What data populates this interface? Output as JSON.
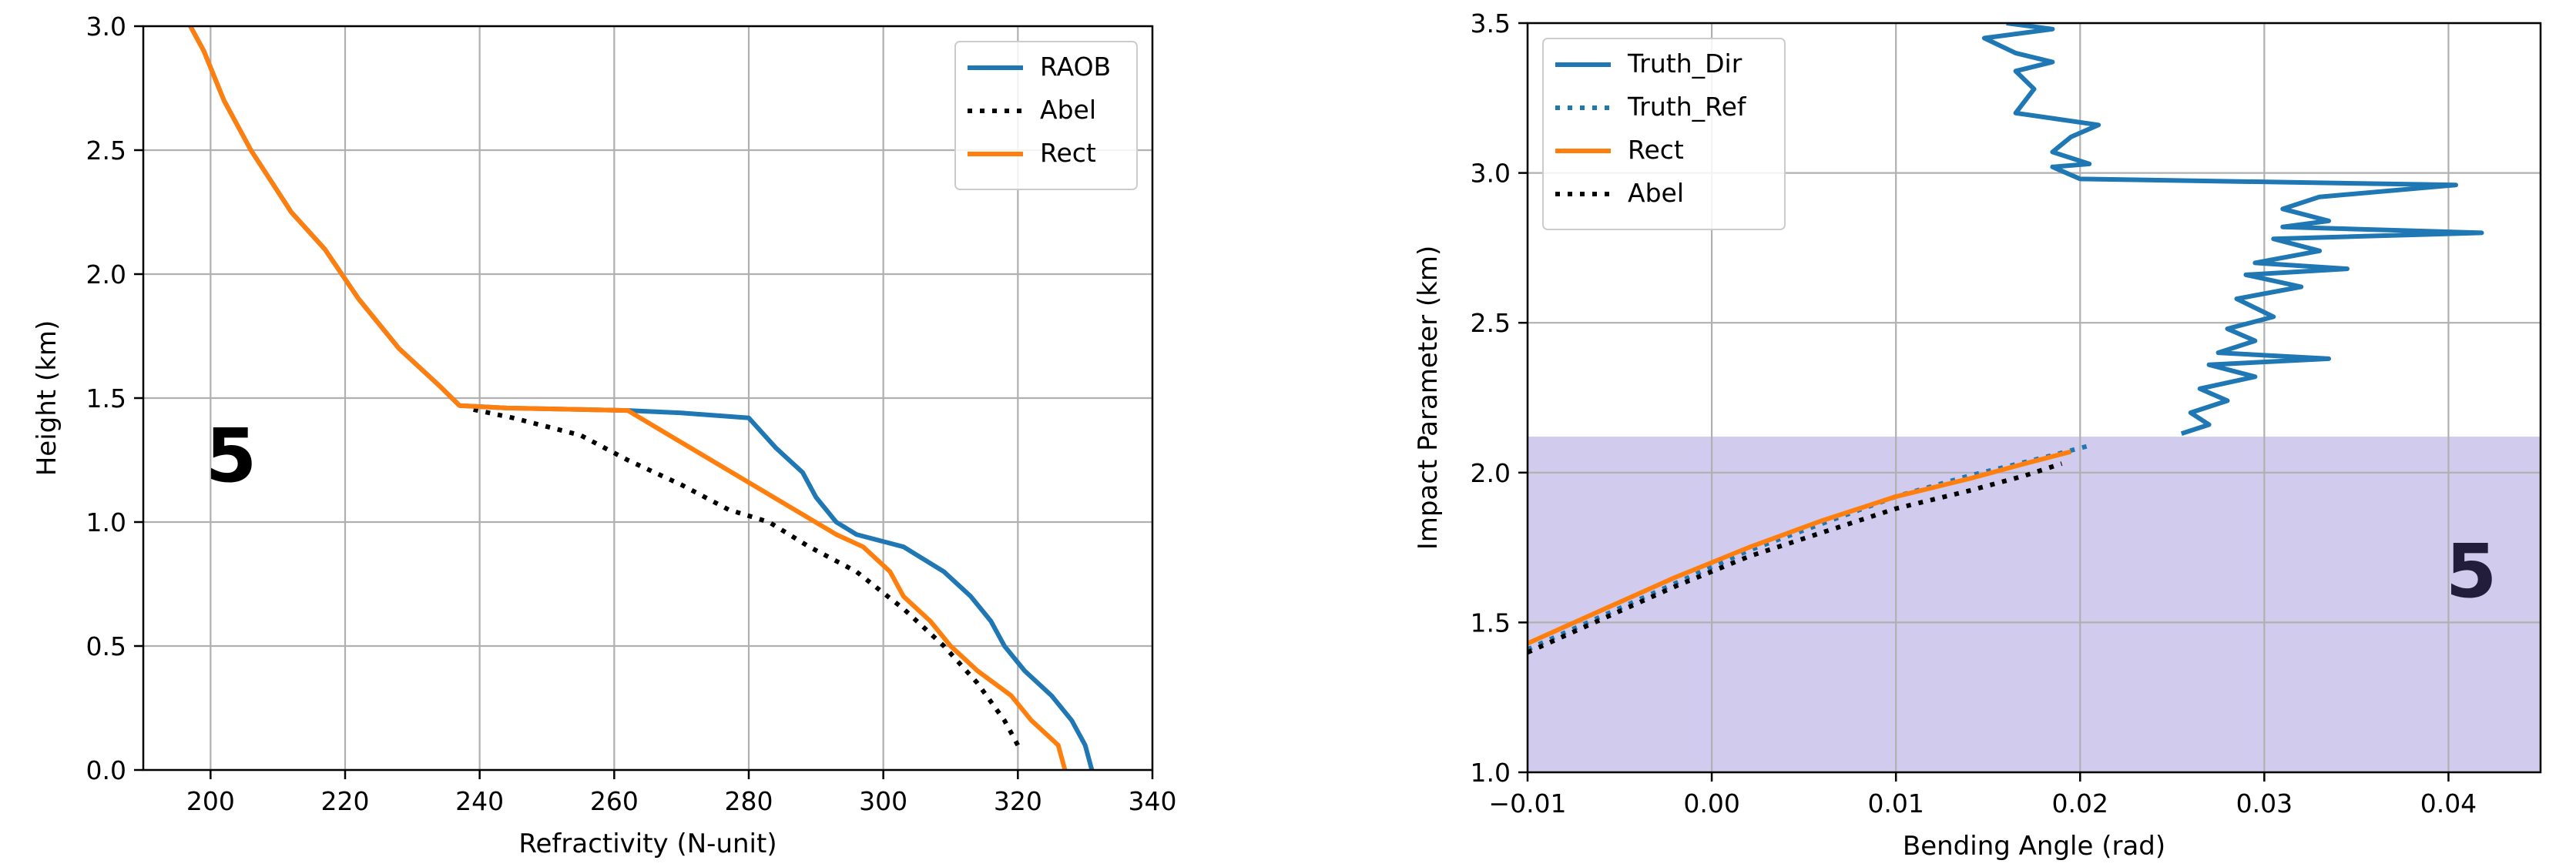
{
  "chart_data": [
    {
      "type": "line",
      "xlabel": "Refractivity (N-unit)",
      "ylabel": "Height (km)",
      "xlim": [
        190,
        340
      ],
      "ylim": [
        0,
        3.0
      ],
      "xticks": [
        200,
        220,
        240,
        260,
        280,
        300,
        320,
        340
      ],
      "yticks": [
        0.0,
        0.5,
        1.0,
        1.5,
        2.0,
        2.5,
        3.0
      ],
      "xtick_labels": [
        "200",
        "220",
        "240",
        "260",
        "280",
        "300",
        "320",
        "340"
      ],
      "ytick_labels": [
        "0.0",
        "0.5",
        "1.0",
        "1.5",
        "2.0",
        "2.5",
        "3.0"
      ],
      "grid": true,
      "legend_position": "top-right",
      "panel_label": "5",
      "series": [
        {
          "name": "RAOB",
          "color": "#1f77b4",
          "style": "solid",
          "points": [
            [
              331,
              0.0
            ],
            [
              330,
              0.1
            ],
            [
              328,
              0.2
            ],
            [
              325,
              0.3
            ],
            [
              321,
              0.4
            ],
            [
              318,
              0.5
            ],
            [
              316,
              0.6
            ],
            [
              313,
              0.7
            ],
            [
              309,
              0.8
            ],
            [
              303,
              0.9
            ],
            [
              296,
              0.95
            ],
            [
              293,
              1.0
            ],
            [
              290,
              1.1
            ],
            [
              288,
              1.2
            ],
            [
              284,
              1.3
            ],
            [
              280,
              1.42
            ],
            [
              270,
              1.44
            ],
            [
              262,
              1.45
            ],
            [
              244,
              1.46
            ],
            [
              237,
              1.47
            ],
            [
              234,
              1.55
            ],
            [
              228,
              1.7
            ],
            [
              222,
              1.9
            ],
            [
              217,
              2.1
            ],
            [
              212,
              2.25
            ],
            [
              206,
              2.5
            ],
            [
              202,
              2.7
            ],
            [
              199,
              2.9
            ],
            [
              197,
              3.0
            ]
          ]
        },
        {
          "name": "Abel",
          "color": "#000000",
          "style": "dotted",
          "points": [
            [
              320,
              0.1
            ],
            [
              318,
              0.2
            ],
            [
              314,
              0.35
            ],
            [
              309,
              0.5
            ],
            [
              303,
              0.65
            ],
            [
              296,
              0.8
            ],
            [
              289,
              0.9
            ],
            [
              283,
              1.0
            ],
            [
              277,
              1.05
            ],
            [
              270,
              1.15
            ],
            [
              262,
              1.25
            ],
            [
              255,
              1.35
            ],
            [
              245,
              1.42
            ],
            [
              238,
              1.46
            ]
          ]
        },
        {
          "name": "Rect",
          "color": "#ff7f0e",
          "style": "solid",
          "points": [
            [
              327,
              0.0
            ],
            [
              326,
              0.1
            ],
            [
              322,
              0.2
            ],
            [
              319,
              0.3
            ],
            [
              314,
              0.4
            ],
            [
              310,
              0.5
            ],
            [
              307,
              0.6
            ],
            [
              303,
              0.7
            ],
            [
              301,
              0.8
            ],
            [
              297,
              0.9
            ],
            [
              293,
              0.95
            ],
            [
              262,
              1.45
            ],
            [
              244,
              1.46
            ],
            [
              237,
              1.47
            ],
            [
              234,
              1.55
            ],
            [
              228,
              1.7
            ],
            [
              222,
              1.9
            ],
            [
              217,
              2.1
            ],
            [
              212,
              2.25
            ],
            [
              206,
              2.5
            ],
            [
              202,
              2.7
            ],
            [
              199,
              2.9
            ],
            [
              197,
              3.0
            ]
          ]
        }
      ]
    },
    {
      "type": "line",
      "xlabel": "Bending Angle (rad)",
      "ylabel": "Impact Parameter (km)",
      "xlim": [
        -0.01,
        0.045
      ],
      "ylim": [
        1.0,
        3.5
      ],
      "xticks": [
        -0.01,
        0.0,
        0.01,
        0.02,
        0.03,
        0.04
      ],
      "yticks": [
        1.0,
        1.5,
        2.0,
        2.5,
        3.0,
        3.5
      ],
      "xtick_labels": [
        "−0.01",
        "0.00",
        "0.01",
        "0.02",
        "0.03",
        "0.04"
      ],
      "ytick_labels": [
        "1.0",
        "1.5",
        "2.0",
        "2.5",
        "3.0",
        "3.5"
      ],
      "grid": true,
      "legend_position": "top-left",
      "panel_label": "5",
      "shaded_region": {
        "ymin": 1.0,
        "ymax": 2.12,
        "color": "#d1cbee"
      },
      "series": [
        {
          "name": "Truth_Dir",
          "color": "#1f77b4",
          "style": "solid",
          "points": [
            [
              0.0255,
              2.13
            ],
            [
              0.027,
              2.16
            ],
            [
              0.026,
              2.2
            ],
            [
              0.028,
              2.24
            ],
            [
              0.0265,
              2.28
            ],
            [
              0.0295,
              2.32
            ],
            [
              0.027,
              2.36
            ],
            [
              0.0335,
              2.38
            ],
            [
              0.0275,
              2.4
            ],
            [
              0.0295,
              2.44
            ],
            [
              0.028,
              2.48
            ],
            [
              0.0305,
              2.52
            ],
            [
              0.0285,
              2.58
            ],
            [
              0.032,
              2.62
            ],
            [
              0.029,
              2.66
            ],
            [
              0.0345,
              2.68
            ],
            [
              0.0295,
              2.7
            ],
            [
              0.033,
              2.74
            ],
            [
              0.0305,
              2.78
            ],
            [
              0.0418,
              2.8
            ],
            [
              0.031,
              2.82
            ],
            [
              0.0335,
              2.84
            ],
            [
              0.031,
              2.88
            ],
            [
              0.033,
              2.92
            ],
            [
              0.0404,
              2.96
            ],
            [
              0.02,
              2.98
            ],
            [
              0.0185,
              3.02
            ],
            [
              0.0205,
              3.03
            ],
            [
              0.0185,
              3.07
            ],
            [
              0.0195,
              3.12
            ],
            [
              0.021,
              3.16
            ],
            [
              0.0165,
              3.2
            ],
            [
              0.0175,
              3.28
            ],
            [
              0.0165,
              3.34
            ],
            [
              0.0185,
              3.37
            ],
            [
              0.0165,
              3.4
            ],
            [
              0.0148,
              3.45
            ],
            [
              0.0185,
              3.48
            ],
            [
              0.016,
              3.5
            ]
          ]
        },
        {
          "name": "Truth_Ref",
          "color": "#1f77b4",
          "style": "dotted",
          "points": [
            [
              -0.01,
              1.41
            ],
            [
              -0.006,
              1.52
            ],
            [
              -0.002,
              1.63
            ],
            [
              0.002,
              1.74
            ],
            [
              0.006,
              1.83
            ],
            [
              0.01,
              1.92
            ],
            [
              0.014,
              1.99
            ],
            [
              0.018,
              2.05
            ],
            [
              0.0205,
              2.09
            ]
          ]
        },
        {
          "name": "Rect",
          "color": "#ff7f0e",
          "style": "solid",
          "points": [
            [
              -0.01,
              1.43
            ],
            [
              -0.006,
              1.54
            ],
            [
              -0.002,
              1.65
            ],
            [
              0.002,
              1.75
            ],
            [
              0.006,
              1.84
            ],
            [
              0.01,
              1.92
            ],
            [
              0.014,
              1.98
            ],
            [
              0.017,
              2.03
            ],
            [
              0.0195,
              2.07
            ]
          ]
        },
        {
          "name": "Abel",
          "color": "#000000",
          "style": "dotted",
          "points": [
            [
              -0.01,
              1.4
            ],
            [
              -0.006,
              1.51
            ],
            [
              -0.002,
              1.62
            ],
            [
              0.002,
              1.72
            ],
            [
              0.006,
              1.8
            ],
            [
              0.01,
              1.88
            ],
            [
              0.014,
              1.94
            ],
            [
              0.017,
              1.99
            ],
            [
              0.019,
              2.03
            ]
          ]
        }
      ]
    }
  ]
}
